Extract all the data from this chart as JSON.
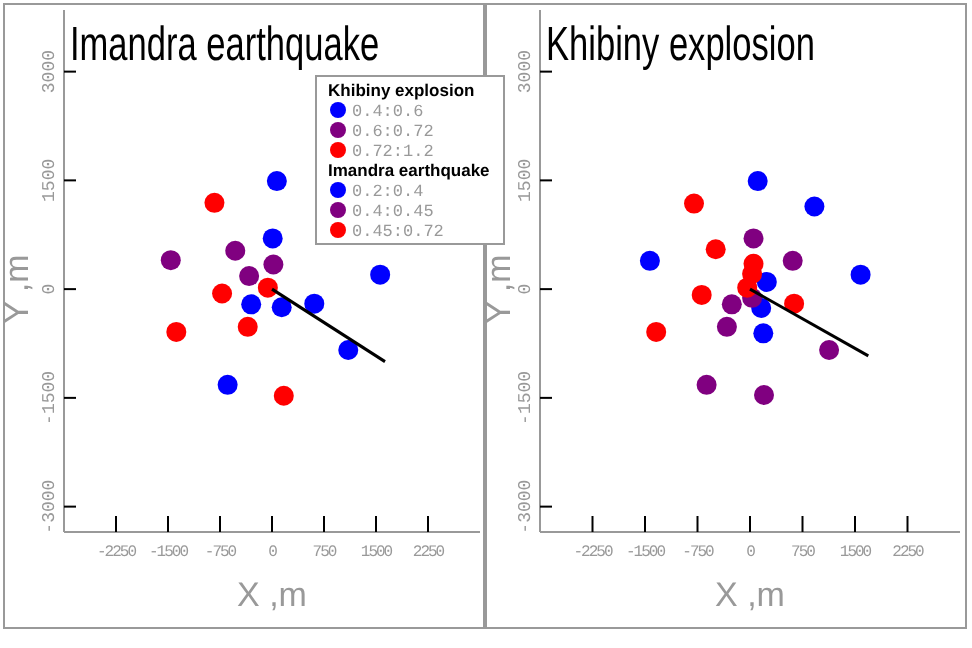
{
  "chart_data": [
    {
      "type": "scatter",
      "title": "Imandra earthquake",
      "xlabel": "X ,m",
      "ylabel": "Y ,m",
      "legend_title": "Imandra earthquake",
      "legend": "top right",
      "marker": "circle",
      "xlim": [
        -3000,
        3000
      ],
      "ylim": [
        -3350,
        3850
      ],
      "xticks": [
        -2250,
        -1500,
        -750,
        0,
        750,
        1500,
        2250
      ],
      "yticks": [
        -3000,
        -1500,
        0,
        1500,
        3000
      ],
      "series": [
        {
          "name": "0.2:0.4",
          "color": "#0000ff",
          "x": [
            70,
            10,
            -300,
            140,
            610,
            1100,
            1560,
            -640
          ],
          "values": [
            1490,
            700,
            -210,
            -250,
            -200,
            -840,
            200,
            -1320
          ]
        },
        {
          "name": "0.4:0.45",
          "color": "#800080",
          "x": [
            -1460,
            -530,
            -330,
            20
          ],
          "values": [
            400,
            530,
            180,
            340
          ]
        },
        {
          "name": "0.45:0.72",
          "color": "#ff0000",
          "x": [
            -830,
            -720,
            -60,
            -350,
            -1380,
            170
          ],
          "values": [
            1190,
            -60,
            20,
            -520,
            -590,
            -1470
          ]
        },
        {
          "type": "line",
          "marker": "none",
          "color": "#000000",
          "x": [
            0,
            1630
          ],
          "values": [
            0,
            -1000
          ]
        }
      ]
    },
    {
      "type": "scatter",
      "title": "Khibiny explosion",
      "xlabel": "X ,m",
      "ylabel": "Y ,m",
      "legend_title": "Khibiny explosion",
      "legend": "top left",
      "marker": "circle",
      "xlim": [
        -3000,
        3000
      ],
      "ylim": [
        -3350,
        3850
      ],
      "xticks": [
        -2250,
        -1500,
        -750,
        0,
        750,
        1500,
        2250
      ],
      "yticks": [
        -3000,
        -1500,
        0,
        1500,
        3000
      ],
      "series": [
        {
          "name": "0.4:0.6",
          "color": "#0000ff",
          "x": [
            110,
            920,
            -1430,
            1580,
            240,
            160,
            190
          ],
          "values": [
            1490,
            1140,
            390,
            200,
            100,
            -260,
            -610
          ]
        },
        {
          "name": "0.6:0.72",
          "color": "#800080",
          "x": [
            50,
            610,
            -260,
            -330,
            1130,
            -620,
            200,
            30
          ],
          "values": [
            700,
            390,
            -210,
            -520,
            -840,
            -1320,
            -1460,
            -120
          ]
        },
        {
          "name": "0.72:1.2",
          "color": "#ff0000",
          "x": [
            -800,
            -490,
            50,
            30,
            -40,
            -690,
            630,
            -1340
          ],
          "values": [
            1180,
            550,
            350,
            210,
            20,
            -80,
            -200,
            -590
          ]
        },
        {
          "type": "line",
          "marker": "none",
          "color": "#000000",
          "x": [
            0,
            1690
          ],
          "values": [
            0,
            -920
          ]
        }
      ]
    }
  ]
}
